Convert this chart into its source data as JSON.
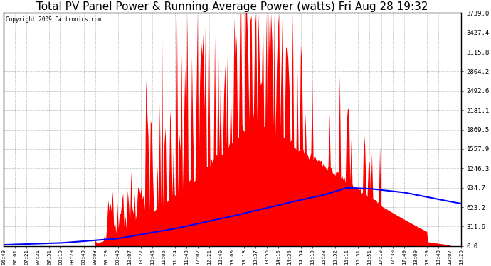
{
  "title": "Total PV Panel Power & Running Average Power (watts) Fri Aug 28 19:32",
  "copyright": "Copyright 2009 Cartronics.com",
  "background_color": "#ffffff",
  "plot_bg_color": "#ffffff",
  "ytick_values": [
    0.0,
    311.6,
    623.2,
    934.7,
    1246.3,
    1557.9,
    1869.5,
    2181.1,
    2492.6,
    2804.2,
    3115.8,
    3427.4,
    3739.0
  ],
  "ymax": 3739.0,
  "ymin": 0.0,
  "x_labels": [
    "06:49",
    "07:01",
    "07:21",
    "07:31",
    "07:51",
    "08:10",
    "08:29",
    "08:49",
    "09:08",
    "09:29",
    "09:48",
    "10:07",
    "10:27",
    "10:46",
    "11:05",
    "11:24",
    "11:43",
    "12:02",
    "12:21",
    "12:40",
    "13:00",
    "13:18",
    "13:37",
    "13:56",
    "14:15",
    "14:35",
    "14:54",
    "15:13",
    "15:33",
    "15:52",
    "16:11",
    "16:31",
    "16:51",
    "17:10",
    "17:30",
    "17:49",
    "18:09",
    "18:29",
    "18:48",
    "19:07",
    "19:26"
  ],
  "bar_color": "#ff0000",
  "line_color": "#0000ff",
  "grid_color": "#b0b0b0",
  "title_fontsize": 11,
  "border_color": "#000000",
  "figwidth": 6.9,
  "figheight": 3.75,
  "dpi": 100
}
